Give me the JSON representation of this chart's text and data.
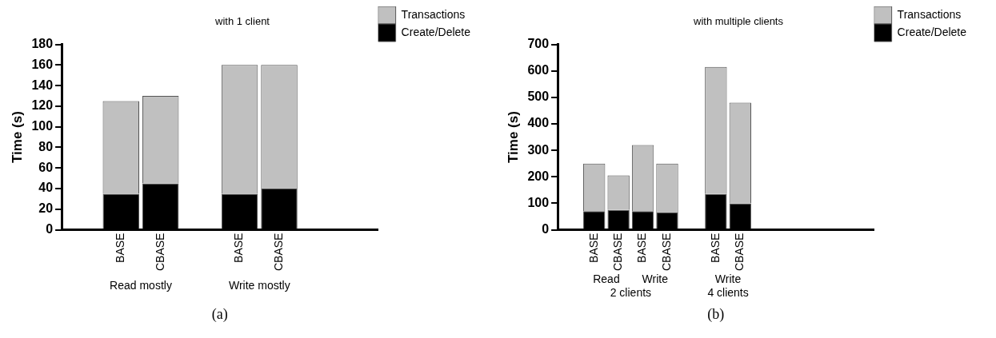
{
  "chart_data": [
    {
      "type": "bar",
      "title": "with 1 client",
      "subtitle": "(a)",
      "ylabel": "Time (s)",
      "stacked": true,
      "categories": [
        null,
        "BASE",
        "CBASE",
        null,
        "BASE",
        "CBASE",
        null,
        null
      ],
      "series": [
        {
          "name": "Create/Delete",
          "color": "#000000",
          "values": [
            null,
            35,
            45,
            null,
            35,
            40,
            null,
            null
          ]
        },
        {
          "name": "Transactions",
          "color": "#c0c0c0",
          "values": [
            null,
            90,
            85,
            null,
            125,
            120,
            null,
            null
          ]
        }
      ],
      "ylim": [
        0,
        180
      ],
      "yticks": [
        0,
        20,
        40,
        60,
        80,
        100,
        120,
        140,
        160,
        180
      ],
      "grid": false,
      "legend": "top right",
      "annotations": [
        "Read mostly",
        "Write mostly"
      ]
    },
    {
      "type": "bar",
      "title": "with multiple clients",
      "subtitle": "(b)",
      "ylabel": "Time (s)",
      "stacked": true,
      "categories": [
        null,
        "BASE",
        "CBASE",
        "BASE",
        "CBASE",
        null,
        "BASE",
        "CBASE",
        null,
        null,
        null,
        null,
        null
      ],
      "series": [
        {
          "name": "Create/Delete",
          "color": "#000000",
          "values": [
            null,
            70,
            75,
            70,
            65,
            null,
            135,
            100,
            null,
            null,
            null,
            null,
            null
          ]
        },
        {
          "name": "Transactions",
          "color": "#c0c0c0",
          "values": [
            null,
            180,
            130,
            250,
            185,
            null,
            480,
            380,
            null,
            null,
            null,
            null,
            null
          ]
        }
      ],
      "ylim": [
        0,
        700
      ],
      "yticks": [
        0,
        100,
        200,
        300,
        400,
        500,
        600,
        700
      ],
      "grid": false,
      "legend": "top right",
      "annotations": [
        "Read",
        "Write",
        "Write",
        "2 clients",
        "4 clients"
      ]
    }
  ]
}
